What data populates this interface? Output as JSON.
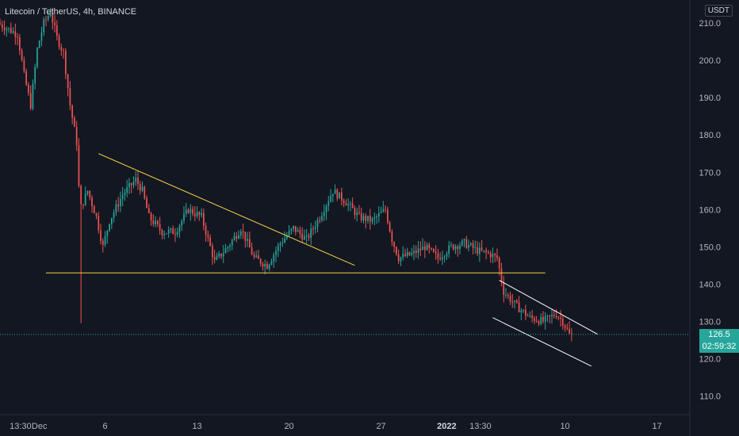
{
  "header": {
    "title": "Litecoin / TetherUS, 4h, BINANCE",
    "currency_badge": "USDT"
  },
  "current_price": {
    "value": 126.5,
    "label": "126.5",
    "countdown": "02:59:32"
  },
  "colors": {
    "background": "#131722",
    "up": "#26a69a",
    "down": "#ef5350",
    "trendline": "#f5d142",
    "channel": "#ffffff",
    "price_line": "#26a69a",
    "axis_text": "#b2b5be"
  },
  "chart_data": {
    "type": "candlestick",
    "title": "Litecoin / TetherUS, 4h, BINANCE",
    "timeframe": "4h",
    "exchange": "BINANCE",
    "grid": false,
    "y_range": [
      105,
      213
    ],
    "y_ticks": [
      110.0,
      120.0,
      130.0,
      140.0,
      150.0,
      160.0,
      170.0,
      180.0,
      190.0,
      200.0,
      210.0
    ],
    "x_range": [
      "2021-11-28 00:00",
      "2022-01-19 12:00"
    ],
    "x_ticks": [
      {
        "label": "13:30",
        "time": "2021-11-29 13:30"
      },
      {
        "label": "Dec",
        "time": "2021-12-01 00:00"
      },
      {
        "label": "6",
        "time": "2021-12-06 00:00"
      },
      {
        "label": "13",
        "time": "2021-12-13 00:00"
      },
      {
        "label": "20",
        "time": "2021-12-20 00:00"
      },
      {
        "label": "27",
        "time": "2021-12-27 00:00"
      },
      {
        "label": "2022",
        "time": "2022-01-01 00:00"
      },
      {
        "label": "13:30",
        "time": "2022-01-03 13:30"
      },
      {
        "label": "10",
        "time": "2022-01-10 00:00"
      },
      {
        "label": "17",
        "time": "2022-01-17 00:00"
      }
    ],
    "price_anchors": [
      [
        "2021-11-28 00:00",
        210
      ],
      [
        "2021-11-29 12:00",
        207
      ],
      [
        "2021-11-30 00:00",
        196
      ],
      [
        "2021-11-30 12:00",
        188
      ],
      [
        "2021-12-01 00:00",
        203
      ],
      [
        "2021-12-01 12:00",
        210
      ],
      [
        "2021-12-02 00:00",
        213
      ],
      [
        "2021-12-02 12:00",
        206
      ],
      [
        "2021-12-03 00:00",
        202
      ],
      [
        "2021-12-03 12:00",
        188
      ],
      [
        "2021-12-04 00:00",
        178
      ],
      [
        "2021-12-04 06:00",
        160
      ],
      [
        "2021-12-04 20:00",
        165
      ],
      [
        "2021-12-05 12:00",
        158
      ],
      [
        "2021-12-06 00:00",
        150
      ],
      [
        "2021-12-06 12:00",
        157
      ],
      [
        "2021-12-07 12:00",
        164
      ],
      [
        "2021-12-08 12:00",
        168
      ],
      [
        "2021-12-09 00:00",
        165
      ],
      [
        "2021-12-09 12:00",
        158
      ],
      [
        "2021-12-10 12:00",
        154
      ],
      [
        "2021-12-11 12:00",
        154
      ],
      [
        "2021-12-12 12:00",
        160
      ],
      [
        "2021-12-13 12:00",
        158
      ],
      [
        "2021-12-14 00:00",
        152
      ],
      [
        "2021-12-14 12:00",
        146
      ],
      [
        "2021-12-15 12:00",
        150
      ],
      [
        "2021-12-16 12:00",
        155
      ],
      [
        "2021-12-17 12:00",
        147
      ],
      [
        "2021-12-18 12:00",
        145
      ],
      [
        "2021-12-19 12:00",
        151
      ],
      [
        "2021-12-20 12:00",
        155
      ],
      [
        "2021-12-21 12:00",
        152
      ],
      [
        "2021-12-22 12:00",
        158
      ],
      [
        "2021-12-23 12:00",
        165
      ],
      [
        "2021-12-24 12:00",
        162
      ],
      [
        "2021-12-25 12:00",
        158
      ],
      [
        "2021-12-26 12:00",
        157
      ],
      [
        "2021-12-27 12:00",
        160
      ],
      [
        "2021-12-28 00:00",
        152
      ],
      [
        "2021-12-28 12:00",
        147
      ],
      [
        "2021-12-29 12:00",
        148
      ],
      [
        "2021-12-30 12:00",
        150
      ],
      [
        "2021-12-31 12:00",
        147
      ],
      [
        "2022-01-01 12:00",
        150
      ],
      [
        "2022-01-02 12:00",
        151
      ],
      [
        "2022-01-03 12:00",
        149
      ],
      [
        "2022-01-04 12:00",
        148
      ],
      [
        "2022-01-05 00:00",
        147
      ],
      [
        "2022-01-05 12:00",
        138
      ],
      [
        "2022-01-06 12:00",
        134
      ],
      [
        "2022-01-07 12:00",
        131
      ],
      [
        "2022-01-08 12:00",
        130
      ],
      [
        "2022-01-09 12:00",
        132
      ],
      [
        "2022-01-10 00:00",
        130
      ],
      [
        "2022-01-10 12:00",
        126.5
      ]
    ],
    "annotations": [
      {
        "kind": "trendline",
        "color": "#f5d142",
        "from": [
          "2021-12-05 12:00",
          175
        ],
        "to": [
          "2021-12-25 00:00",
          145
        ]
      },
      {
        "kind": "horizontal_support",
        "color": "#f5d142",
        "from": [
          "2021-12-01 12:00",
          143
        ],
        "to": [
          "2022-01-08 12:00",
          143
        ]
      },
      {
        "kind": "channel_upper",
        "color": "#ffffff",
        "from": [
          "2022-01-05 00:00",
          141
        ],
        "to": [
          "2022-01-12 12:00",
          126.5
        ]
      },
      {
        "kind": "channel_lower",
        "color": "#ffffff",
        "from": [
          "2022-01-04 12:00",
          131
        ],
        "to": [
          "2022-01-12 00:00",
          118
        ]
      }
    ],
    "last_price": 126.5
  }
}
